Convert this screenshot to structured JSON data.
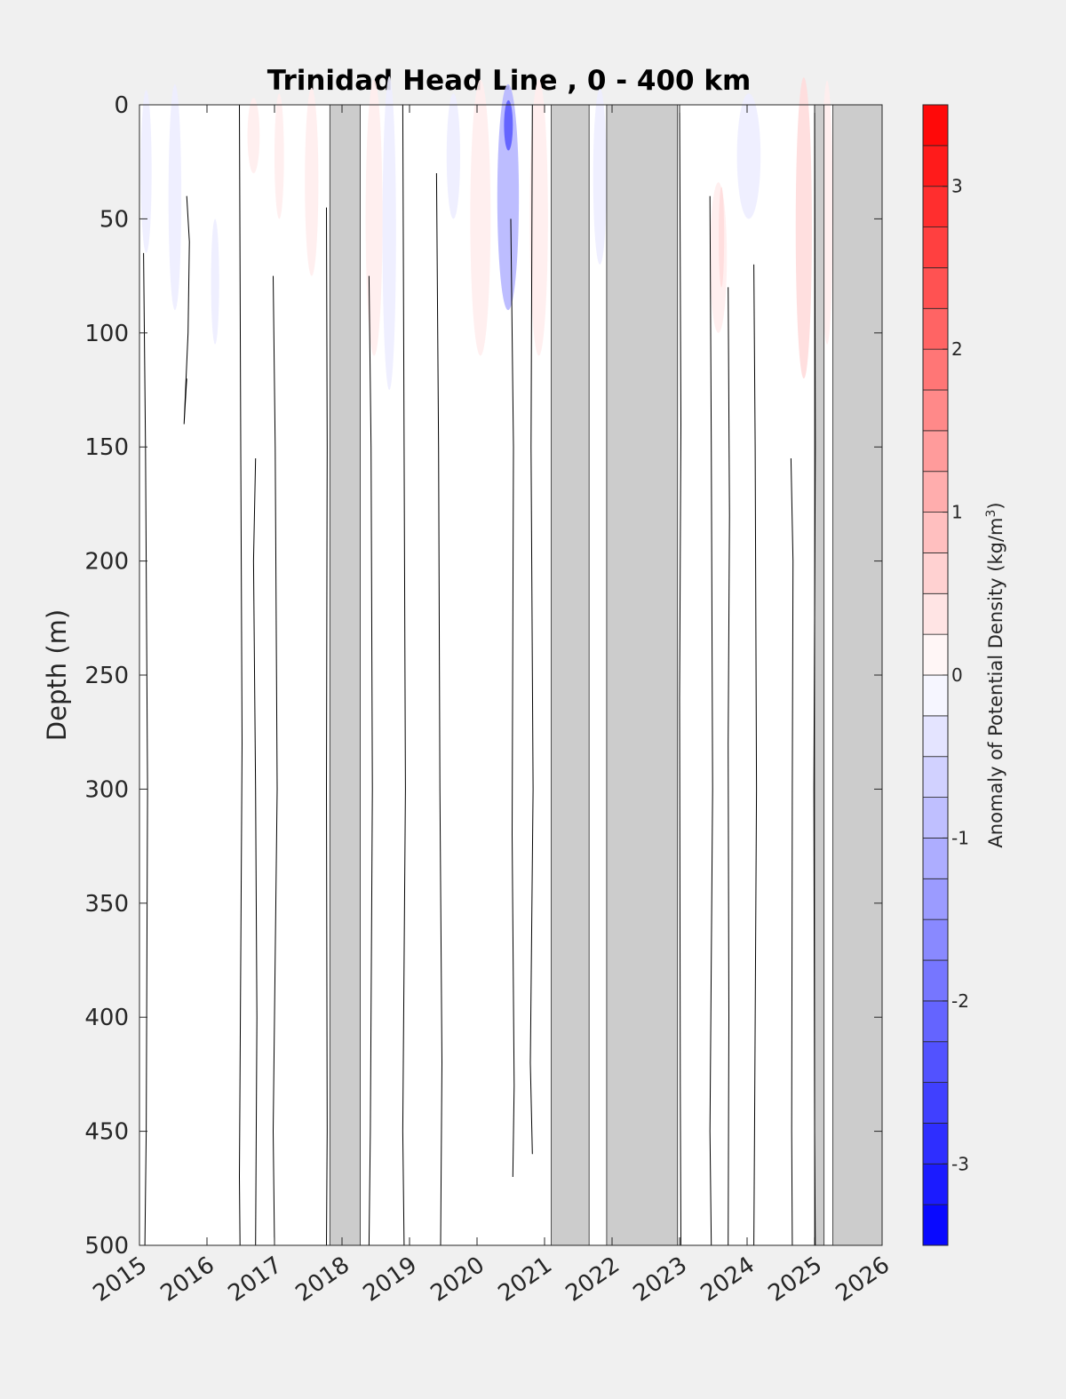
{
  "chart_data": {
    "type": "heatmap",
    "title": "Trinidad Head Line , 0 - 400 km",
    "xlabel": "",
    "ylabel": "Depth (m)",
    "xlim": [
      2015,
      2026
    ],
    "ylim": [
      0,
      500
    ],
    "y_reversed": true,
    "x_ticks": [
      "2015",
      "2016",
      "2017",
      "2018",
      "2019",
      "2020",
      "2021",
      "2022",
      "2023",
      "2024",
      "2025",
      "2026"
    ],
    "y_ticks": [
      "0",
      "50",
      "100",
      "150",
      "200",
      "250",
      "300",
      "350",
      "400",
      "450",
      "500"
    ],
    "grid": false,
    "colorbar": {
      "label": "Anomaly of Potential Density (kg/m3)",
      "range": [
        -3.5,
        3.5
      ],
      "step": 0.25,
      "ticks": [
        "-3",
        "-2",
        "-1",
        "0",
        "1",
        "2",
        "3"
      ],
      "colors": {
        "negative": "#0000ff",
        "zero": "#ffffff",
        "positive": "#ff0000"
      }
    },
    "missing_data_color": "#cccccc",
    "no_data_intervals": [
      [
        2017.82,
        2018.27
      ],
      [
        2021.1,
        2021.66
      ],
      [
        2021.92,
        2022.97
      ],
      [
        2025.27,
        2026.0
      ],
      [
        2025.0,
        2025.14
      ]
    ],
    "anomaly_patches": [
      {
        "x": [
          2015.02,
          2015.18
        ],
        "depth": [
          0,
          65
        ],
        "value": -0.25
      },
      {
        "x": [
          2015.43,
          2015.62
        ],
        "depth": [
          0,
          90
        ],
        "value": -0.25
      },
      {
        "x": [
          2016.06,
          2016.18
        ],
        "depth": [
          55,
          105
        ],
        "value": -0.25
      },
      {
        "x": [
          2016.6,
          2016.78
        ],
        "depth": [
          0,
          30
        ],
        "value": 0.25
      },
      {
        "x": [
          2017.0,
          2017.14
        ],
        "depth": [
          0,
          50
        ],
        "value": 0.25
      },
      {
        "x": [
          2017.45,
          2017.65
        ],
        "depth": [
          0,
          75
        ],
        "value": 0.25
      },
      {
        "x": [
          2018.35,
          2018.6
        ],
        "depth": [
          0,
          110
        ],
        "value": 0.25
      },
      {
        "x": [
          2018.6,
          2018.8
        ],
        "depth": [
          0,
          125
        ],
        "value": -0.25
      },
      {
        "x": [
          2019.55,
          2019.75
        ],
        "depth": [
          0,
          50
        ],
        "value": -0.25
      },
      {
        "x": [
          2019.9,
          2020.2
        ],
        "depth": [
          0,
          110
        ],
        "value": 0.25
      },
      {
        "x": [
          2020.3,
          2020.62
        ],
        "depth": [
          0,
          90
        ],
        "value": -1.0
      },
      {
        "x": [
          2020.4,
          2020.53
        ],
        "depth": [
          0,
          20
        ],
        "value": -2.25
      },
      {
        "x": [
          2020.78,
          2021.05
        ],
        "depth": [
          0,
          110
        ],
        "value": 0.25
      },
      {
        "x": [
          2021.72,
          2021.92
        ],
        "depth": [
          0,
          70
        ],
        "value": -0.25
      },
      {
        "x": [
          2023.45,
          2023.7
        ],
        "depth": [
          40,
          100
        ],
        "value": 0.25
      },
      {
        "x": [
          2023.58,
          2023.66
        ],
        "depth": [
          40,
          80
        ],
        "value": 0.5
      },
      {
        "x": [
          2023.85,
          2024.2
        ],
        "depth": [
          0,
          50
        ],
        "value": -0.25
      },
      {
        "x": [
          2024.72,
          2024.96
        ],
        "depth": [
          0,
          120
        ],
        "value": 0.5
      },
      {
        "x": [
          2025.1,
          2025.27
        ],
        "depth": [
          0,
          105
        ],
        "value": 0.25
      }
    ],
    "contour_value": 0,
    "contour_lines": [
      {
        "year": 2015.06,
        "x_offset": [
          0,
          0.03,
          0.06,
          0.04,
          0.02
        ],
        "depth": [
          65,
          150,
          300,
          450,
          500
        ]
      },
      {
        "year": 2015.7,
        "x_offset": [
          0,
          0.04,
          0.02,
          -0.04,
          0
        ],
        "depth": [
          40,
          60,
          100,
          140,
          120
        ]
      },
      {
        "year": 2016.48,
        "x_offset": [
          0,
          0.02,
          0.04,
          0.0,
          0.01
        ],
        "depth": [
          0,
          150,
          280,
          470,
          500
        ]
      },
      {
        "year": 2016.72,
        "x_offset": [
          0,
          -0.03,
          0.0,
          0.02,
          0.0
        ],
        "depth": [
          155,
          200,
          300,
          400,
          500
        ]
      },
      {
        "year": 2016.98,
        "x_offset": [
          0,
          0.03,
          0.06,
          0.0,
          0.02
        ],
        "depth": [
          75,
          150,
          300,
          450,
          500
        ]
      },
      {
        "year": 2017.77,
        "x_offset": [
          0,
          0.01,
          0.0,
          0.01,
          0.0
        ],
        "depth": [
          45,
          150,
          300,
          450,
          500
        ]
      },
      {
        "year": 2018.4,
        "x_offset": [
          0,
          0.03,
          0.05,
          0.02,
          0.0
        ],
        "depth": [
          75,
          150,
          300,
          450,
          500
        ]
      },
      {
        "year": 2018.9,
        "x_offset": [
          0,
          0.02,
          0.04,
          0.0,
          0.02
        ],
        "depth": [
          0,
          150,
          300,
          450,
          500
        ]
      },
      {
        "year": 2019.4,
        "x_offset": [
          0,
          0.03,
          0.05,
          0.08,
          0.06
        ],
        "depth": [
          30,
          150,
          300,
          420,
          500
        ]
      },
      {
        "year": 2020.5,
        "x_offset": [
          0,
          0.04,
          0.02,
          0.05,
          0.03
        ],
        "depth": [
          50,
          150,
          320,
          430,
          470
        ]
      },
      {
        "year": 2020.82,
        "x_offset": [
          0,
          -0.02,
          0.01,
          -0.03,
          0.0
        ],
        "depth": [
          0,
          150,
          300,
          420,
          460
        ]
      },
      {
        "year": 2023.0,
        "x_offset": [
          0,
          0.02,
          0.0,
          0.01,
          0.02
        ],
        "depth": [
          0,
          140,
          260,
          430,
          500
        ]
      },
      {
        "year": 2023.45,
        "x_offset": [
          0,
          0.02,
          0.04,
          0.0,
          0.02
        ],
        "depth": [
          40,
          150,
          300,
          450,
          500
        ]
      },
      {
        "year": 2023.72,
        "x_offset": [
          0,
          0.02,
          0.0,
          0.01,
          0.0
        ],
        "depth": [
          80,
          180,
          280,
          400,
          500
        ]
      },
      {
        "year": 2024.1,
        "x_offset": [
          0,
          0.02,
          0.04,
          0.01,
          0.0
        ],
        "depth": [
          70,
          150,
          300,
          450,
          500
        ]
      },
      {
        "year": 2024.65,
        "x_offset": [
          0,
          0.03,
          0.02,
          0.01,
          0.02
        ],
        "depth": [
          155,
          200,
          300,
          450,
          500
        ]
      },
      {
        "year": 2025.0,
        "x_offset": [
          0,
          0.01,
          -0.01,
          0.0,
          0.01
        ],
        "depth": [
          0,
          150,
          300,
          450,
          500
        ]
      }
    ]
  }
}
